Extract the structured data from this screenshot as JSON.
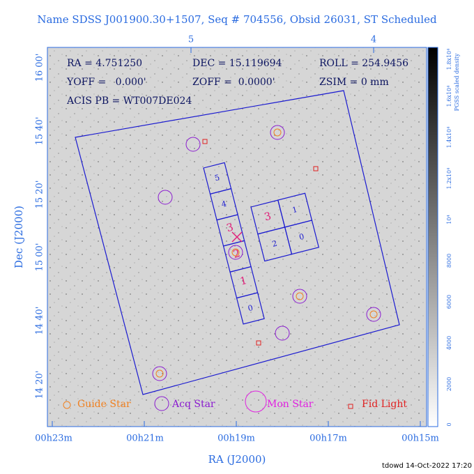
{
  "title": "Name SDSS J001900.30+1507, Seq # 704556, Obsid 26031, ST Scheduled",
  "info": {
    "ra": "RA = 4.751250",
    "dec": "DEC = 15.119694",
    "roll": "ROLL = 254.9456",
    "yoff": "YOFF =   0.000'",
    "zoff": "ZOFF =  0.0000'",
    "zsim": "ZSIM = 0 mm",
    "acis": "ACIS PB = WT007DE024"
  },
  "x_axis": {
    "label": "RA (J2000)",
    "ticks": [
      "00h23m",
      "00h21m",
      "00h19m",
      "00h17m",
      "00h15m"
    ]
  },
  "top_axis": {
    "ticks": [
      "5",
      "4"
    ]
  },
  "y_axis": {
    "label": "Dec (J2000)",
    "ticks": [
      "14 20'",
      "14 40'",
      "15 00'",
      "15 20'",
      "15 40'",
      "16 00'"
    ]
  },
  "colorbar": {
    "label": "PGSS scaled density",
    "ticks": [
      "0",
      "2000",
      "4000",
      "6000",
      "8000",
      "10⁴",
      "1.2x10⁴",
      "1.4x10⁴",
      "1.6x10⁴",
      "1.8x10⁴"
    ]
  },
  "s_chips": [
    "5",
    "4",
    "3",
    "2",
    "1",
    "0"
  ],
  "i_chips": [
    "3",
    "1",
    "2",
    "0"
  ],
  "legend": [
    "Guide Star",
    "Acq Star",
    "Mon Star",
    "Fid Light"
  ],
  "footer": "tdowd 14-Oct-2022 17:20"
}
